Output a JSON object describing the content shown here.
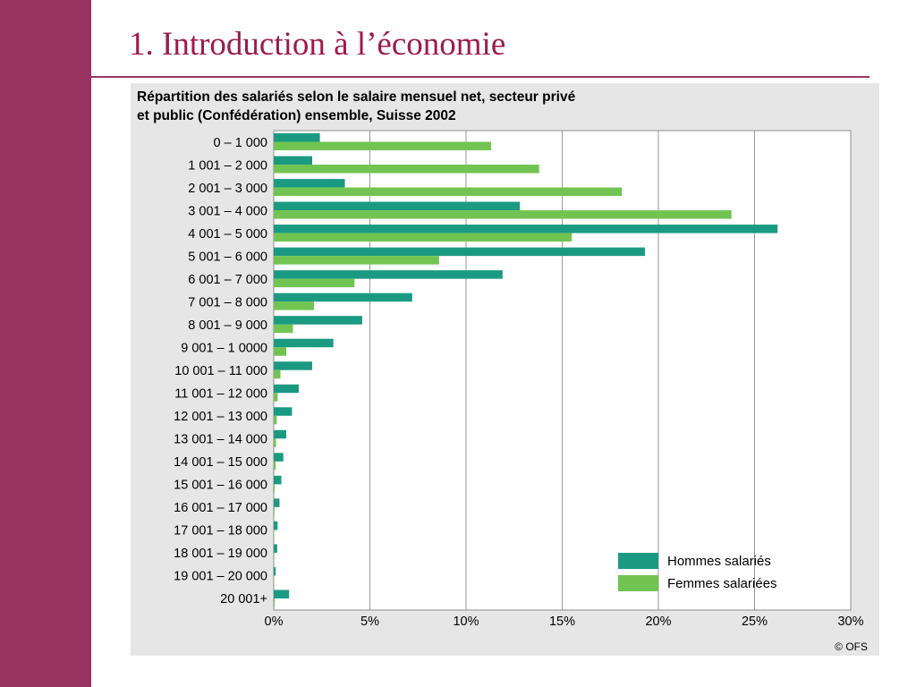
{
  "slide": {
    "title": "1. Introduction à l’économie"
  },
  "colors": {
    "band": "#9b3460",
    "title_text": "#9b1c4c",
    "panel_bg": "#e6e6e6",
    "hommes": "#1b9a82",
    "femmes": "#72c452"
  },
  "chart_data": {
    "type": "bar",
    "orientation": "horizontal",
    "title_lines": [
      "Répartition des salariés selon le salaire mensuel net, secteur privé",
      "et public (Confédération) ensemble, Suisse 2002"
    ],
    "categories": [
      "0 – 1 000",
      "1 001 – 2 000",
      "2 001 – 3 000",
      "3 001 – 4 000",
      "4 001 – 5 000",
      "5 001 – 6 000",
      "6 001 – 7 000",
      "7 001 – 8 000",
      "8 001 – 9 000",
      "9 001 – 1 0000",
      "10 001 – 11 000",
      "11 001 – 12 000",
      "12 001 – 13 000",
      "13 001 – 14 000",
      "14 001 – 15 000",
      "15 001 – 16 000",
      "16 001 – 17 000",
      "17 001 – 18 000",
      "18 001 – 19 000",
      "19 001 – 20 000",
      "20 001+"
    ],
    "series": [
      {
        "name": "Hommes salariés",
        "color": "#1b9a82",
        "values": [
          2.4,
          2.0,
          3.7,
          12.8,
          26.2,
          19.3,
          11.9,
          7.2,
          4.6,
          3.1,
          2.0,
          1.3,
          0.95,
          0.65,
          0.5,
          0.4,
          0.3,
          0.2,
          0.18,
          0.1,
          0.8
        ]
      },
      {
        "name": "Femmes salariées",
        "color": "#72c452",
        "values": [
          11.3,
          13.8,
          18.1,
          23.8,
          15.5,
          8.6,
          4.2,
          2.1,
          1.0,
          0.65,
          0.35,
          0.2,
          0.15,
          0.12,
          0.1,
          0.05,
          0.04,
          0.03,
          0.03,
          0.02,
          0.05
        ]
      }
    ],
    "xlim": [
      0,
      30
    ],
    "x_ticks": [
      "0%",
      "5%",
      "10%",
      "15%",
      "20%",
      "25%",
      "30%"
    ],
    "grid": true,
    "legend_position": "bottom-right",
    "source": "© OFS"
  }
}
